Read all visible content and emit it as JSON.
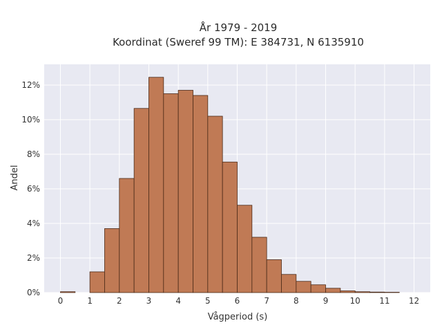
{
  "chart_data": {
    "type": "bar",
    "title": "År 1979 - 2019",
    "subtitle": "Koordinat (Sweref 99 TM): E 384731, N 6135910",
    "xlabel": "Vågperiod (s)",
    "ylabel": "Andel",
    "bar_color": "#c07a55",
    "bar_edge_color": "#4a2a18",
    "plot_background": "#e8e9f2",
    "grid": true,
    "bin_width": 0.5,
    "bins": [
      {
        "start": 0.0,
        "value": 0.05
      },
      {
        "start": 0.5,
        "value": 0.0
      },
      {
        "start": 1.0,
        "value": 1.2
      },
      {
        "start": 1.5,
        "value": 3.7
      },
      {
        "start": 2.0,
        "value": 6.6
      },
      {
        "start": 2.5,
        "value": 10.65
      },
      {
        "start": 3.0,
        "value": 12.45
      },
      {
        "start": 3.5,
        "value": 11.5
      },
      {
        "start": 4.0,
        "value": 11.7
      },
      {
        "start": 4.5,
        "value": 11.4
      },
      {
        "start": 5.0,
        "value": 10.2
      },
      {
        "start": 5.5,
        "value": 7.55
      },
      {
        "start": 6.0,
        "value": 5.05
      },
      {
        "start": 6.5,
        "value": 3.2
      },
      {
        "start": 7.0,
        "value": 1.9
      },
      {
        "start": 7.5,
        "value": 1.05
      },
      {
        "start": 8.0,
        "value": 0.65
      },
      {
        "start": 8.5,
        "value": 0.45
      },
      {
        "start": 9.0,
        "value": 0.25
      },
      {
        "start": 9.5,
        "value": 0.1
      },
      {
        "start": 10.0,
        "value": 0.05
      },
      {
        "start": 10.5,
        "value": 0.03
      },
      {
        "start": 11.0,
        "value": 0.02
      }
    ],
    "xlim": [
      -0.55,
      12.55
    ],
    "ylim": [
      0,
      13.2
    ],
    "x_ticks": [
      0,
      1,
      2,
      3,
      4,
      5,
      6,
      7,
      8,
      9,
      10,
      11,
      12
    ],
    "y_ticks": [
      0,
      2,
      4,
      6,
      8,
      10,
      12
    ],
    "y_tick_labels": [
      "0%",
      "2%",
      "4%",
      "6%",
      "8%",
      "10%",
      "12%"
    ]
  }
}
